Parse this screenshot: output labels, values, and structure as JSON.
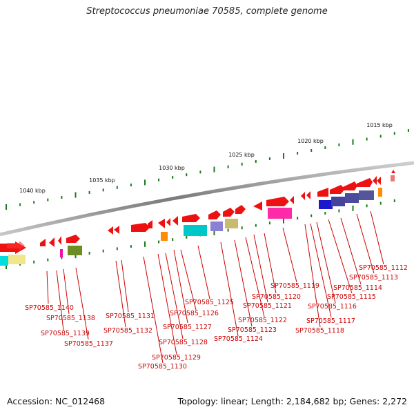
{
  "title": "Streptococcus pneumoniae 70585, complete genome",
  "footer": {
    "accession": "Accession: NC_012468",
    "summary": "Topology: linear; Length: 2,184,682 bp; Genes: 2,272"
  },
  "ruler": {
    "ticks": [
      "1015 kbp",
      "1020 kbp",
      "1025 kbp",
      "1030 kbp",
      "1035 kbp",
      "1040 kbp"
    ]
  },
  "genes": [
    "SP70585_1112",
    "SP70585_1113",
    "SP70585_1114",
    "SP70585_1115",
    "SP70585_1116",
    "SP70585_1117",
    "SP70585_1118",
    "SP70585_1119",
    "SP70585_1120",
    "SP70585_1121",
    "SP70585_1122",
    "SP70585_1123",
    "SP70585_1124",
    "SP70585_1125",
    "SP70585_1126",
    "SP70585_1127",
    "SP70585_1128",
    "SP70585_1129",
    "SP70585_1130",
    "SP70585_1131",
    "SP70585_1132",
    "SP70585_1137",
    "SP70585_1138",
    "SP70585_1139",
    "SP70585_1140"
  ],
  "colors": {
    "gene": "#ee1111",
    "label": "#cc0000",
    "tick": "#1a7a1a",
    "backbone": "#8a8a8a"
  }
}
